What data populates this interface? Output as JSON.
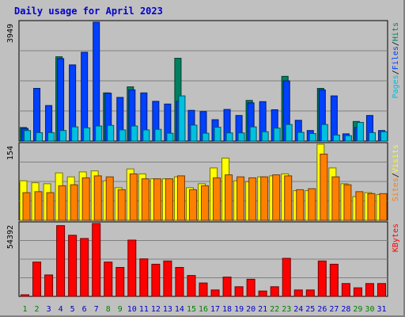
{
  "title": "Daily usage for April 2023",
  "chart_data": {
    "type": "bar",
    "categories": [
      "1",
      "2",
      "3",
      "4",
      "5",
      "6",
      "7",
      "8",
      "9",
      "10",
      "11",
      "12",
      "13",
      "14",
      "15",
      "16",
      "17",
      "18",
      "19",
      "20",
      "21",
      "22",
      "23",
      "24",
      "25",
      "26",
      "27",
      "28",
      "29",
      "30",
      "31"
    ],
    "weekend_days": [
      "1",
      "2",
      "8",
      "9",
      "15",
      "16",
      "22",
      "23",
      "29",
      "30"
    ],
    "colors": {
      "pages": "#00c0e0",
      "files": "#0040ff",
      "hits": "#008060",
      "sites": "#ff8000",
      "visits": "#ffff00",
      "kbytes": "#ff0000",
      "weekday_label": "#0000cc",
      "weekend_label": "#008000"
    },
    "panels": [
      {
        "id": "hits",
        "ymax_label": "3949",
        "ylim": [
          0,
          3949
        ],
        "right_label": [
          {
            "text": "Pages",
            "color": "#00c0e0"
          },
          {
            "text": "/",
            "color": "#000000"
          },
          {
            "text": "Files",
            "color": "#0040ff"
          },
          {
            "text": "/",
            "color": "#000000"
          },
          {
            "text": "Hits",
            "color": "#008060"
          }
        ],
        "series": [
          {
            "name": "Hits",
            "values": [
              450,
              0,
              0,
              2800,
              0,
              0,
              0,
              1600,
              0,
              1800,
              0,
              0,
              0,
              2750,
              0,
              0,
              0,
              0,
              0,
              1350,
              0,
              0,
              2150,
              0,
              0,
              1750,
              0,
              0,
              650,
              0,
              0
            ]
          },
          {
            "name": "Files",
            "values": [
              420,
              1750,
              1180,
              2740,
              2530,
              2950,
              3949,
              1590,
              1450,
              1700,
              1600,
              1320,
              1230,
              1320,
              1020,
              980,
              710,
              1050,
              850,
              1270,
              1310,
              1040,
              2000,
              690,
              350,
              1700,
              1500,
              240,
              450,
              850,
              350
            ]
          },
          {
            "name": "Pages",
            "values": [
              350,
              280,
              280,
              350,
              470,
              440,
              500,
              520,
              370,
              500,
              370,
              390,
              260,
              1500,
              530,
              260,
              460,
              270,
              270,
              470,
              310,
              430,
              550,
              290,
              250,
              550,
              200,
              180,
              620,
              280,
              310
            ]
          }
        ]
      },
      {
        "id": "visits",
        "ymax_label": "154",
        "ylim": [
          0,
          154
        ],
        "right_label": [
          {
            "text": "Sites",
            "color": "#ff8000"
          },
          {
            "text": "/",
            "color": "#000000"
          },
          {
            "text": "Visits",
            "color": "#ffff00"
          }
        ],
        "series": [
          {
            "name": "Visits",
            "values": [
              80,
              76,
              74,
              96,
              88,
              98,
              100,
              80,
              66,
              104,
              94,
              84,
              84,
              88,
              66,
              74,
              106,
              126,
              80,
              78,
              88,
              90,
              94,
              60,
              60,
              154,
              106,
              74,
              48,
              56,
              52
            ]
          },
          {
            "name": "Sites",
            "values": [
              56,
              58,
              56,
              70,
              72,
              86,
              90,
              88,
              62,
              94,
              84,
              84,
              84,
              90,
              62,
              70,
              86,
              92,
              88,
              86,
              88,
              92,
              90,
              62,
              64,
              134,
              88,
              72,
              58,
              54,
              54
            ]
          }
        ]
      },
      {
        "id": "kbytes",
        "ymax_label": "54392",
        "ylim": [
          0,
          54392
        ],
        "right_label": [
          {
            "text": "KBytes",
            "color": "#ff0000"
          }
        ],
        "series": [
          {
            "name": "KBytes",
            "values": [
              1200,
              25600,
              16000,
              52800,
              45600,
              43200,
              54392,
              25600,
              21600,
              42000,
              28000,
              24000,
              26400,
              21600,
              15600,
              10000,
              4800,
              14400,
              7200,
              12800,
              4000,
              7200,
              28400,
              4800,
              4800,
              26400,
              24000,
              9600,
              6400,
              9600,
              9600
            ]
          }
        ]
      }
    ]
  }
}
